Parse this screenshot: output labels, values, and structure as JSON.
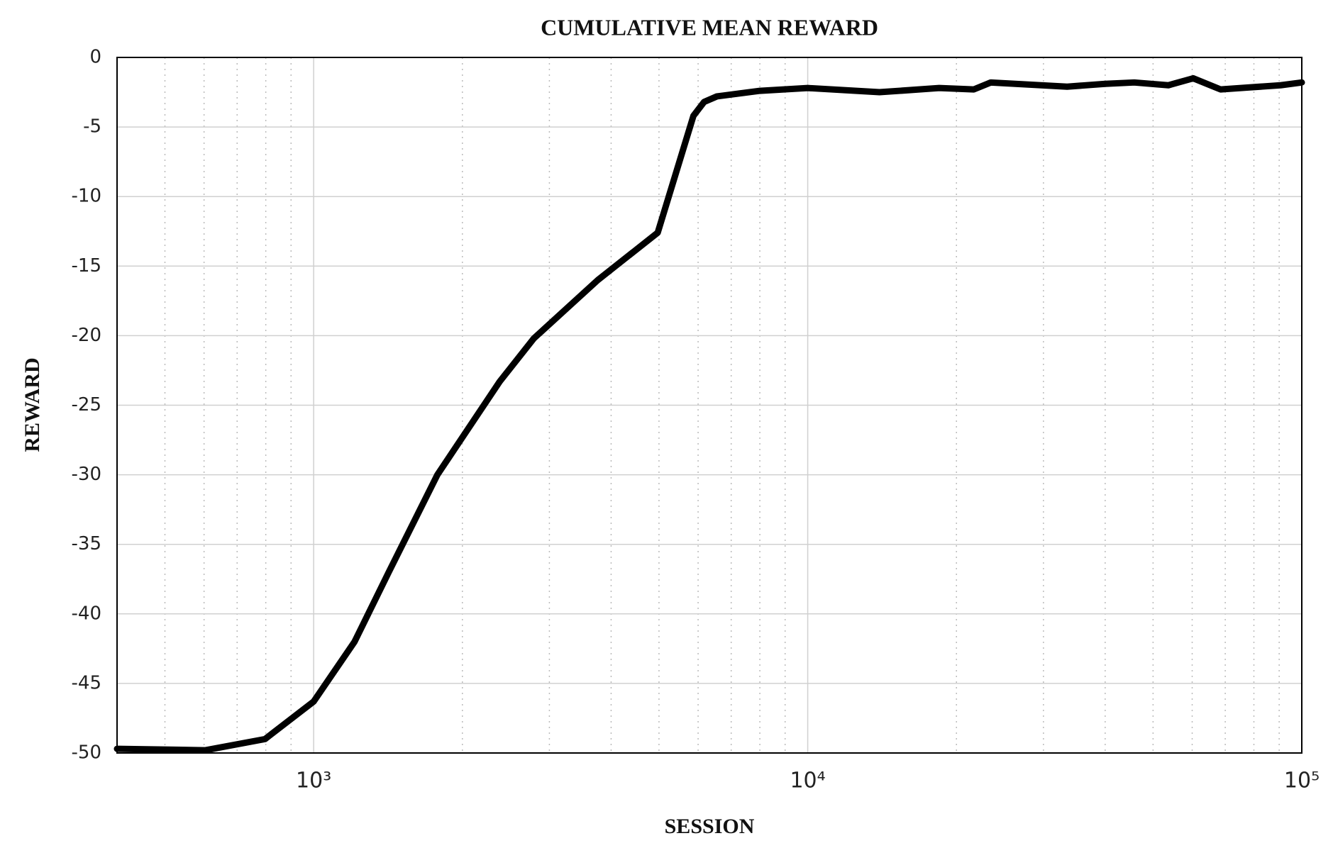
{
  "chart_data": {
    "type": "line",
    "title": "CUMULATIVE MEAN REWARD",
    "x_label": "SESSION",
    "y_label": "REWARD",
    "x": [
      400,
      604,
      797,
      1000,
      1210,
      1419,
      1780,
      2380,
      2790,
      3760,
      4970,
      5870,
      6170,
      6550,
      8000,
      10000,
      13970,
      18450,
      21680,
      23470,
      33500,
      40000,
      45800,
      53700,
      60300,
      68500,
      90600,
      100000
    ],
    "series": [
      {
        "name": "Cumulative mean reward",
        "color": "#000000",
        "values": [
          -49.7,
          -49.8,
          -49.0,
          -46.3,
          -42.0,
          -37.0,
          -30.0,
          -23.3,
          -20.2,
          -16.0,
          -12.6,
          -4.2,
          -3.2,
          -2.8,
          -2.4,
          -2.2,
          -2.5,
          -2.2,
          -2.3,
          -1.8,
          -2.1,
          -1.9,
          -1.8,
          -2.0,
          -1.5,
          -2.3,
          -2.0,
          -1.8
        ]
      }
    ],
    "xscale": "log",
    "xlim": [
      400,
      100000
    ],
    "xticks": [
      {
        "value": 1000,
        "label": "10³"
      },
      {
        "value": 10000,
        "label": "10⁴"
      },
      {
        "value": 100000,
        "label": "10⁵"
      }
    ],
    "x_minor_grid": [
      500,
      600,
      700,
      800,
      900,
      2000,
      3000,
      4000,
      5000,
      6000,
      7000,
      8000,
      9000,
      20000,
      30000,
      40000,
      50000,
      60000,
      70000,
      80000,
      90000
    ],
    "ylim": [
      -50,
      0
    ],
    "yticks": [
      -50,
      -45,
      -40,
      -35,
      -30,
      -25,
      -20,
      -15,
      -10,
      -5,
      0
    ],
    "grid": true
  }
}
